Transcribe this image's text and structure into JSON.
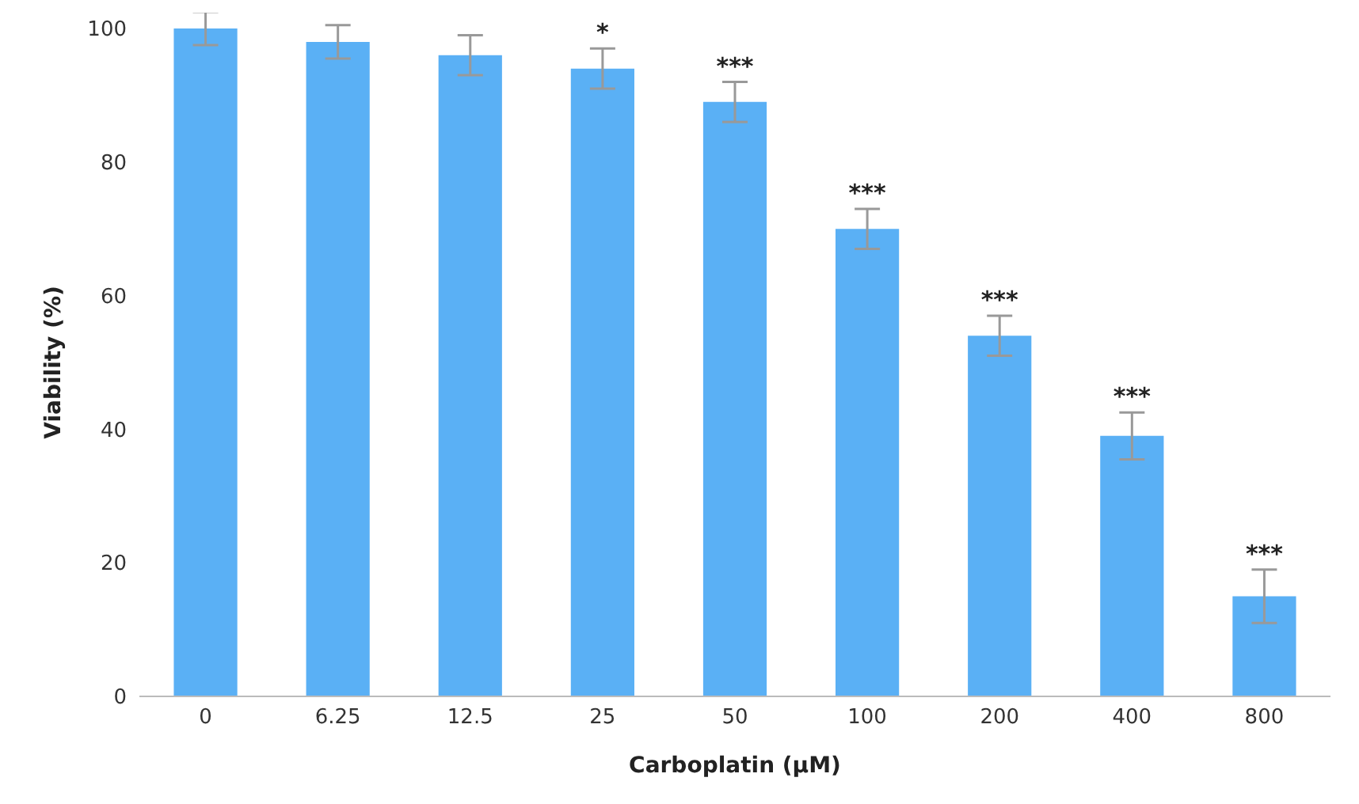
{
  "chart_data": {
    "type": "bar",
    "xlabel": "Carboplatin (μM)",
    "ylabel": "Viability (%)",
    "categories": [
      "0",
      "6.25",
      "12.5",
      "25",
      "50",
      "100",
      "200",
      "400",
      "800"
    ],
    "values": [
      100,
      98,
      96,
      94,
      89,
      70,
      54,
      39,
      15
    ],
    "errors": [
      2.5,
      2.5,
      3,
      3,
      3,
      3,
      3,
      3.5,
      4
    ],
    "color": "#5ab0f5",
    "ylim": [
      0,
      100
    ],
    "yticks": [
      0,
      20,
      40,
      60,
      80,
      100
    ],
    "annotations": [
      {
        "text": "*",
        "x": "25",
        "y": 97
      },
      {
        "text": "***",
        "x": "50",
        "y": 92
      },
      {
        "text": "***",
        "x": "100",
        "y": 73
      },
      {
        "text": "***",
        "x": "200",
        "y": 57
      },
      {
        "text": "***",
        "x": "400",
        "y": 42.5
      },
      {
        "text": "***",
        "x": "800",
        "y": 19
      }
    ]
  }
}
